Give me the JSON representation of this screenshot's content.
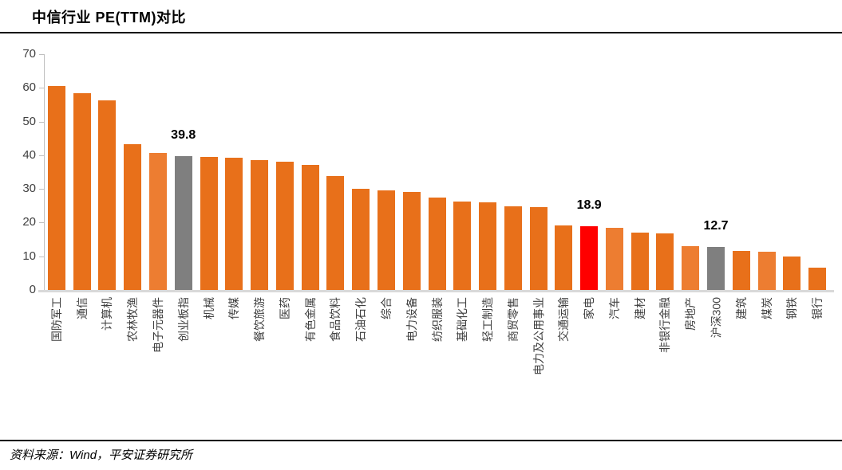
{
  "page": {
    "title": "中信行业 PE(TTM)对比",
    "source_note": "资料来源：Wind，平安证券研究所"
  },
  "colors": {
    "orange": "#e8701a",
    "orange_light": "#ed7d31",
    "gray": "#7f7f7f",
    "red": "#ff0000",
    "axis_line": "#bfbfbf",
    "baseline": "#d9d9d9",
    "tick_label": "#404040",
    "data_label": "#000000"
  },
  "chart_data": {
    "type": "bar",
    "title": "中信行业 PE(TTM)对比",
    "xlabel": "",
    "ylabel": "",
    "ylim": [
      0,
      70
    ],
    "yticks": [
      0,
      10,
      20,
      30,
      40,
      50,
      60,
      70
    ],
    "grid": false,
    "legend": false,
    "bars": [
      {
        "category": "国防军工",
        "value": 60.5,
        "color": "orange"
      },
      {
        "category": "通信",
        "value": 58.5,
        "color": "orange"
      },
      {
        "category": "计算机",
        "value": 56.3,
        "color": "orange"
      },
      {
        "category": "农林牧渔",
        "value": 43.3,
        "color": "orange"
      },
      {
        "category": "电子元器件",
        "value": 40.7,
        "color": "orange_light"
      },
      {
        "category": "创业板指",
        "value": 39.8,
        "color": "gray",
        "data_label": "39.8"
      },
      {
        "category": "机械",
        "value": 39.6,
        "color": "orange"
      },
      {
        "category": "传媒",
        "value": 39.2,
        "color": "orange"
      },
      {
        "category": "餐饮旅游",
        "value": 38.6,
        "color": "orange"
      },
      {
        "category": "医药",
        "value": 38.0,
        "color": "orange"
      },
      {
        "category": "有色金属",
        "value": 37.2,
        "color": "orange"
      },
      {
        "category": "食品饮料",
        "value": 33.9,
        "color": "orange"
      },
      {
        "category": "石油石化",
        "value": 30.0,
        "color": "orange"
      },
      {
        "category": "综合",
        "value": 29.5,
        "color": "orange"
      },
      {
        "category": "电力设备",
        "value": 29.2,
        "color": "orange"
      },
      {
        "category": "纺织服装",
        "value": 27.4,
        "color": "orange"
      },
      {
        "category": "基础化工",
        "value": 26.2,
        "color": "orange"
      },
      {
        "category": "轻工制造",
        "value": 26.1,
        "color": "orange"
      },
      {
        "category": "商贸零售",
        "value": 24.8,
        "color": "orange"
      },
      {
        "category": "电力及公用事业",
        "value": 24.5,
        "color": "orange"
      },
      {
        "category": "交通运输",
        "value": 19.2,
        "color": "orange"
      },
      {
        "category": "家电",
        "value": 18.9,
        "color": "red",
        "data_label": "18.9"
      },
      {
        "category": "汽车",
        "value": 18.5,
        "color": "orange_light"
      },
      {
        "category": "建材",
        "value": 17.1,
        "color": "orange"
      },
      {
        "category": "非银行金融",
        "value": 16.9,
        "color": "orange"
      },
      {
        "category": "房地产",
        "value": 12.9,
        "color": "orange_light"
      },
      {
        "category": "沪深300",
        "value": 12.7,
        "color": "gray",
        "data_label": "12.7"
      },
      {
        "category": "建筑",
        "value": 11.7,
        "color": "orange"
      },
      {
        "category": "煤炭",
        "value": 11.3,
        "color": "orange_light"
      },
      {
        "category": "钢铁",
        "value": 10.0,
        "color": "orange"
      },
      {
        "category": "银行",
        "value": 6.6,
        "color": "orange"
      }
    ]
  }
}
